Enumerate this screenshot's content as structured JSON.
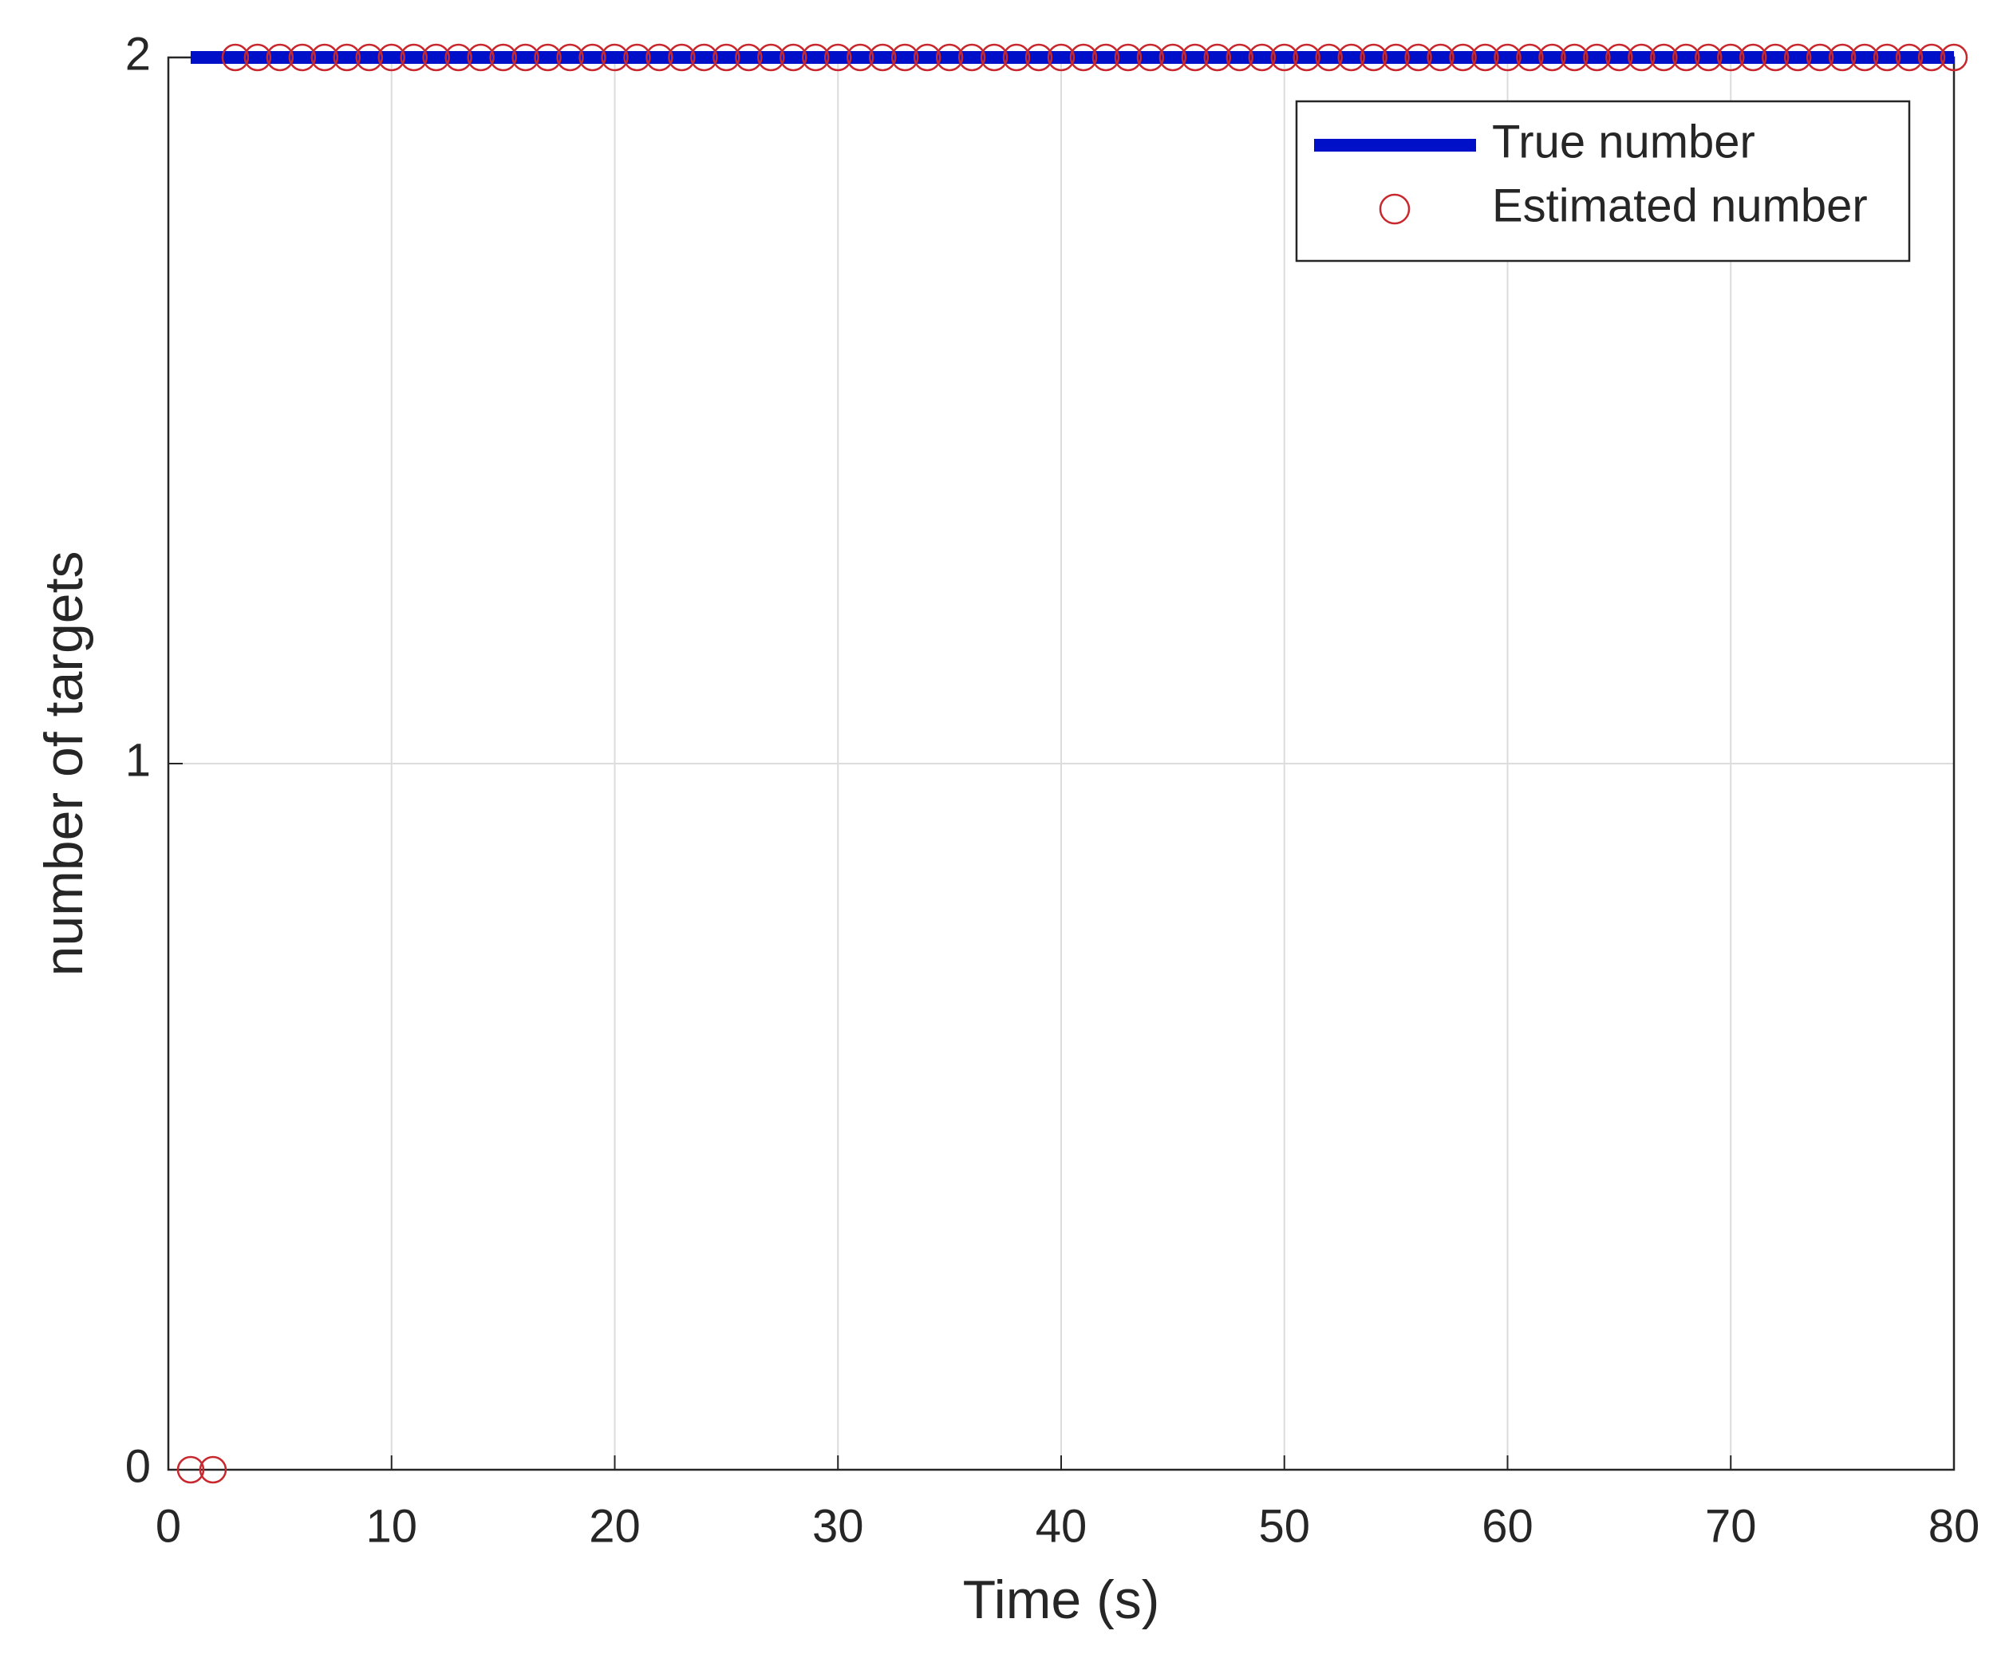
{
  "chart_data": {
    "type": "line",
    "xlabel": "Time (s)",
    "ylabel": "number of targets",
    "x": [
      1,
      2,
      3,
      4,
      5,
      6,
      7,
      8,
      9,
      10,
      11,
      12,
      13,
      14,
      15,
      16,
      17,
      18,
      19,
      20,
      21,
      22,
      23,
      24,
      25,
      26,
      27,
      28,
      29,
      30,
      31,
      32,
      33,
      34,
      35,
      36,
      37,
      38,
      39,
      40,
      41,
      42,
      43,
      44,
      45,
      46,
      47,
      48,
      49,
      50,
      51,
      52,
      53,
      54,
      55,
      56,
      57,
      58,
      59,
      60,
      61,
      62,
      63,
      64,
      65,
      66,
      67,
      68,
      69,
      70,
      71,
      72,
      73,
      74,
      75,
      76,
      77,
      78,
      79,
      80
    ],
    "series": [
      {
        "name": "True number",
        "color": "#0010c8",
        "style": "line",
        "values": [
          2,
          2,
          2,
          2,
          2,
          2,
          2,
          2,
          2,
          2,
          2,
          2,
          2,
          2,
          2,
          2,
          2,
          2,
          2,
          2,
          2,
          2,
          2,
          2,
          2,
          2,
          2,
          2,
          2,
          2,
          2,
          2,
          2,
          2,
          2,
          2,
          2,
          2,
          2,
          2,
          2,
          2,
          2,
          2,
          2,
          2,
          2,
          2,
          2,
          2,
          2,
          2,
          2,
          2,
          2,
          2,
          2,
          2,
          2,
          2,
          2,
          2,
          2,
          2,
          2,
          2,
          2,
          2,
          2,
          2,
          2,
          2,
          2,
          2,
          2,
          2,
          2,
          2,
          2,
          2
        ]
      },
      {
        "name": "Estimated number",
        "color": "#c8282d",
        "style": "marker",
        "values": [
          0,
          0,
          2,
          2,
          2,
          2,
          2,
          2,
          2,
          2,
          2,
          2,
          2,
          2,
          2,
          2,
          2,
          2,
          2,
          2,
          2,
          2,
          2,
          2,
          2,
          2,
          2,
          2,
          2,
          2,
          2,
          2,
          2,
          2,
          2,
          2,
          2,
          2,
          2,
          2,
          2,
          2,
          2,
          2,
          2,
          2,
          2,
          2,
          2,
          2,
          2,
          2,
          2,
          2,
          2,
          2,
          2,
          2,
          2,
          2,
          2,
          2,
          2,
          2,
          2,
          2,
          2,
          2,
          2,
          2,
          2,
          2,
          2,
          2,
          2,
          2,
          2,
          2,
          2,
          2
        ]
      }
    ],
    "xlim": [
      0,
      80
    ],
    "xticks": [
      0,
      10,
      20,
      30,
      40,
      50,
      60,
      70,
      80
    ],
    "ylim": [
      0,
      2
    ],
    "yticks": [
      0,
      1,
      2
    ],
    "grid": true,
    "legend": "northeast"
  }
}
